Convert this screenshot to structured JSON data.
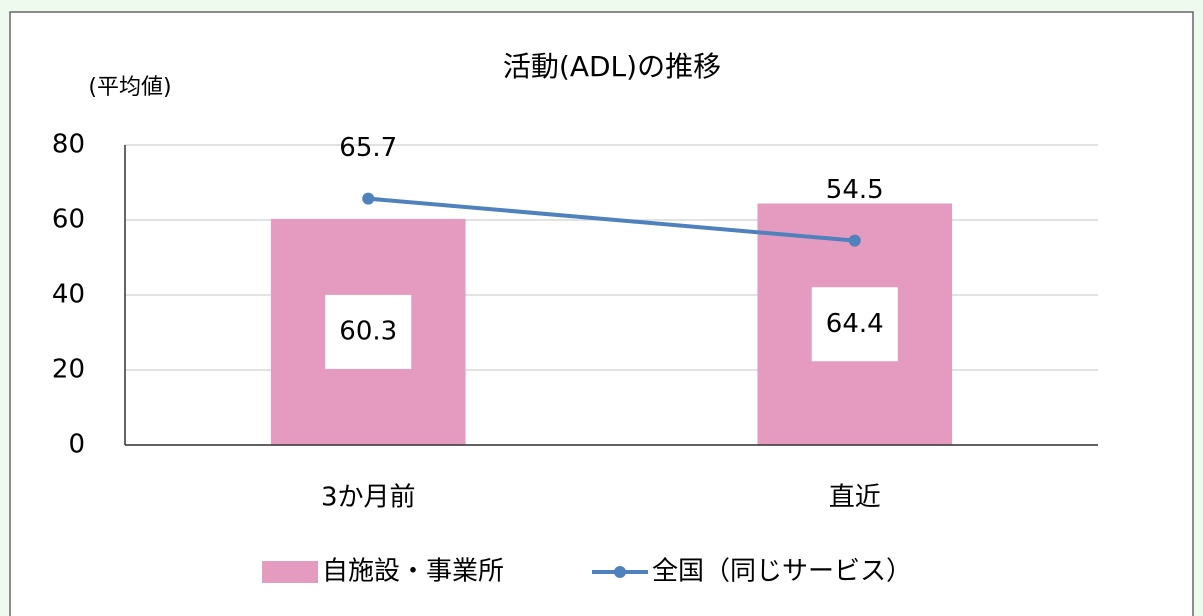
{
  "chart_data": {
    "type": "bar_line",
    "title": "活動(ADL)の推移",
    "y_axis_label": "(平均値)",
    "categories": [
      "3か月前",
      "直近"
    ],
    "series": [
      {
        "name": "自施設・事業所",
        "type": "bar",
        "color": "#e59bc0",
        "values": [
          60.3,
          64.4
        ]
      },
      {
        "name": "全国（同じサービス）",
        "type": "line",
        "color": "#4f81bd",
        "values": [
          65.7,
          54.5
        ]
      }
    ],
    "ylim": [
      0,
      80
    ],
    "yticks": [
      0,
      20,
      40,
      60,
      80
    ],
    "grid": true,
    "legend": "bottom"
  }
}
